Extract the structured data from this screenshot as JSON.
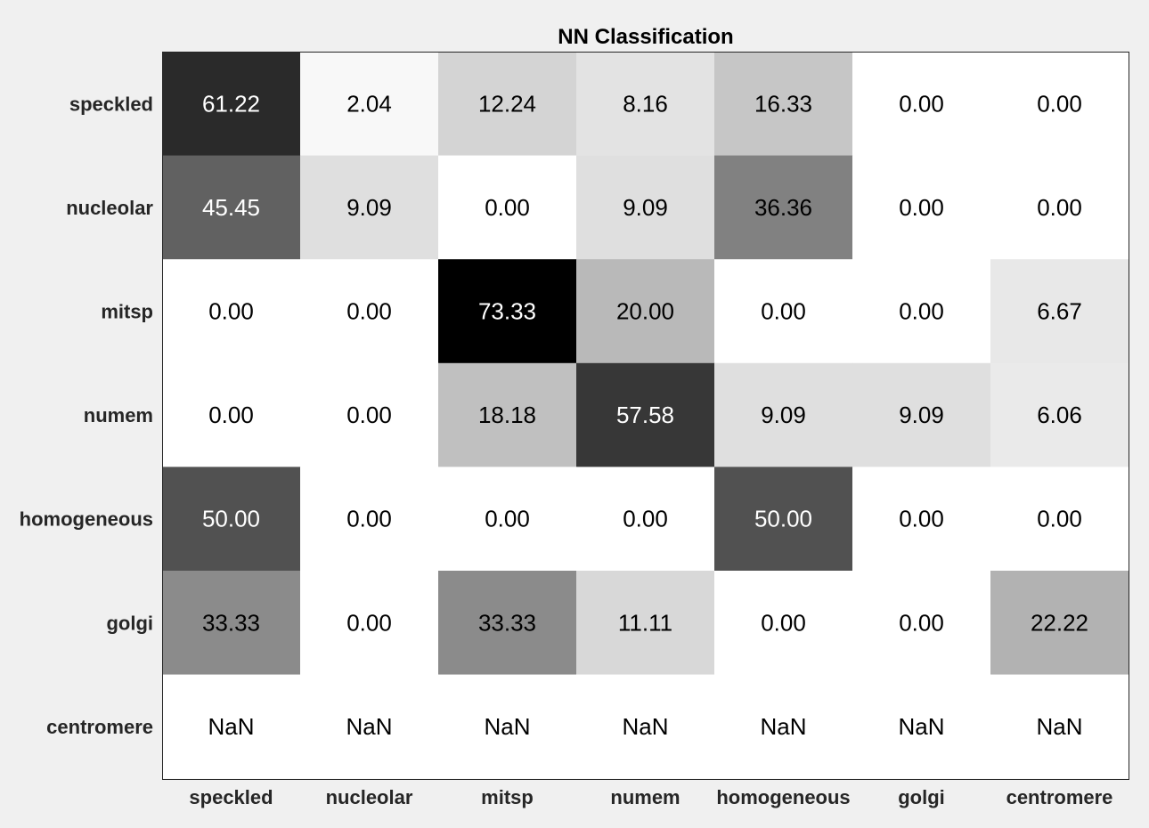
{
  "chart_data": {
    "type": "heatmap",
    "title": "NN Classification",
    "xlabel": "",
    "ylabel": "",
    "colormap": "gray-reversed",
    "value_range": [
      0,
      73.33
    ],
    "x_categories": [
      "speckled",
      "nucleolar",
      "mitsp",
      "numem",
      "homogeneous",
      "golgi",
      "centromere"
    ],
    "y_categories": [
      "speckled",
      "nucleolar",
      "mitsp",
      "numem",
      "homogeneous",
      "golgi",
      "centromere"
    ],
    "values": [
      [
        "61.22",
        "2.04",
        "12.24",
        "8.16",
        "16.33",
        "0.00",
        "0.00"
      ],
      [
        "45.45",
        "9.09",
        "0.00",
        "9.09",
        "36.36",
        "0.00",
        "0.00"
      ],
      [
        "0.00",
        "0.00",
        "73.33",
        "20.00",
        "0.00",
        "0.00",
        "6.67"
      ],
      [
        "0.00",
        "0.00",
        "18.18",
        "57.58",
        "9.09",
        "9.09",
        "6.06"
      ],
      [
        "50.00",
        "0.00",
        "0.00",
        "0.00",
        "50.00",
        "0.00",
        "0.00"
      ],
      [
        "33.33",
        "0.00",
        "33.33",
        "11.11",
        "0.00",
        "0.00",
        "22.22"
      ],
      [
        "NaN",
        "NaN",
        "NaN",
        "NaN",
        "NaN",
        "NaN",
        "NaN"
      ]
    ],
    "colors": {
      "background": "#f0f0f0",
      "axis": "#262626",
      "label_dark": "#000000",
      "label_light": "#ffffff"
    }
  }
}
